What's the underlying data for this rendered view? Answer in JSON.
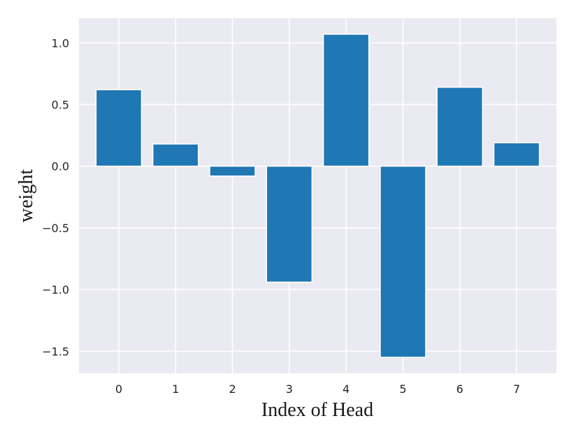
{
  "chart_data": {
    "type": "bar",
    "categories": [
      "0",
      "1",
      "2",
      "3",
      "4",
      "5",
      "6",
      "7"
    ],
    "values": [
      0.62,
      0.18,
      -0.08,
      -0.94,
      1.07,
      -1.55,
      0.64,
      0.19
    ],
    "xlabel": "Index of Head",
    "ylabel": "weight",
    "ylim": [
      -1.68,
      1.2
    ],
    "yticks": [
      1.0,
      0.5,
      0.0,
      -0.5,
      -1.0,
      -1.5
    ],
    "ytick_labels": [
      "1.0",
      "0.5",
      "0.0",
      "−0.5",
      "−1.0",
      "−1.5"
    ],
    "grid": true,
    "colors": {
      "bar": "#1f77b4",
      "plot_background": "#eaeaf2",
      "grid": "#ffffff"
    }
  }
}
